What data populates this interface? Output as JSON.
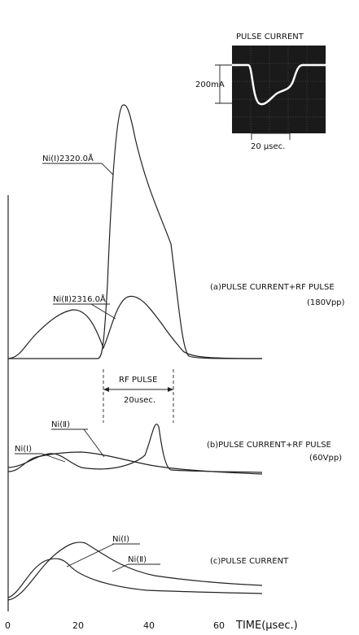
{
  "figure": {
    "inset": {
      "title": "PULSE CURRENT",
      "scale_label": "200mA",
      "time_label": "20 μsec."
    },
    "panel_a": {
      "label": "(a)PULSE CURRENT+RF PULSE",
      "sublabel": "(180Vpp)",
      "line_1": "Ni(Ⅰ)2320.0Å",
      "line_2": "Ni(Ⅱ)2316.0Å"
    },
    "rf_pulse": {
      "label": "RF PULSE",
      "width_label": "20usec."
    },
    "panel_b": {
      "label": "(b)PULSE CURRENT+RF PULSE",
      "sublabel": "(60Vpp)",
      "line_1": "Ni(Ⅰ)",
      "line_2": "Ni(Ⅱ)"
    },
    "panel_c": {
      "label": "(c)PULSE CURRENT",
      "line_1": "Ni(Ⅰ)",
      "line_2": "Ni(Ⅱ)"
    },
    "x_axis": {
      "ticks": [
        "0",
        "20",
        "40",
        "60"
      ],
      "label": "TIME(μsec.)"
    }
  }
}
